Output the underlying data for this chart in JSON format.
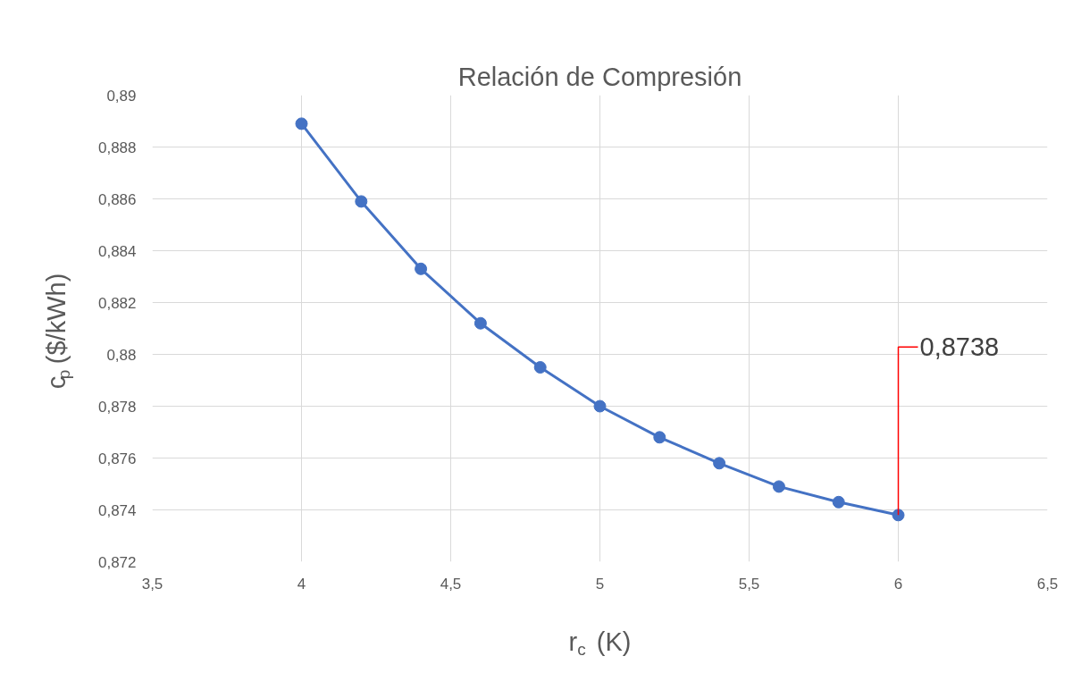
{
  "chart_data": {
    "type": "line",
    "title": "Relación de Compresión",
    "xlabel": "r$_{c}$ (K)",
    "ylabel": "c$_{p}$ ($/kWh)",
    "x": [
      4,
      4.2,
      4.4,
      4.6,
      4.8,
      5,
      5.2,
      5.4,
      5.6,
      5.8,
      6
    ],
    "series": [
      {
        "color": "#4472c4",
        "values": [
          0.8889,
          0.8859,
          0.8833,
          0.8812,
          0.8795,
          0.878,
          0.8768,
          0.8758,
          0.8749,
          0.8743,
          0.8738
        ]
      }
    ],
    "xlim": [
      3.5,
      6.5
    ],
    "xticks": [
      {
        "value": 3.5,
        "label": "3,5"
      },
      4,
      {
        "value": 4.5,
        "label": "4,5"
      },
      5,
      {
        "value": 5.5,
        "label": "5,5"
      },
      6,
      {
        "value": 6.5,
        "label": "6,5"
      }
    ],
    "ylim": [
      0.872,
      0.89
    ],
    "yticks": [
      {
        "value": 0.872,
        "label": "0,872"
      },
      {
        "value": 0.874,
        "label": "0,874"
      },
      {
        "value": 0.876,
        "label": "0,876"
      },
      {
        "value": 0.878,
        "label": "0,878"
      },
      {
        "value": 0.88,
        "label": "0,88"
      },
      {
        "value": 0.882,
        "label": "0,882"
      },
      {
        "value": 0.884,
        "label": "0,884"
      },
      {
        "value": 0.886,
        "label": "0,886"
      },
      {
        "value": 0.888,
        "label": "0,888"
      },
      {
        "value": 0.89,
        "label": "0,89"
      }
    ],
    "annotations": [
      {
        "text": "0,8738",
        "x": 6,
        "y": 0.8738
      }
    ],
    "grid": true,
    "marker": "circle",
    "line_style": "solid"
  }
}
